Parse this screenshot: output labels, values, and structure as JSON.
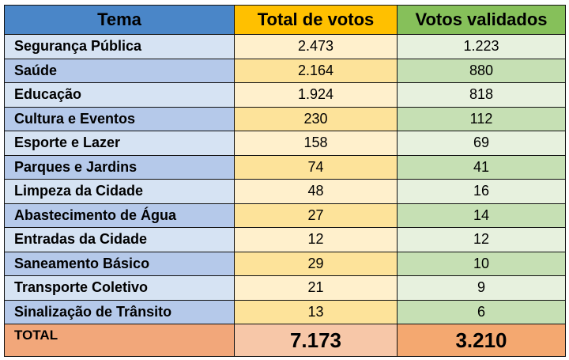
{
  "table": {
    "headers": {
      "tema": "Tema",
      "total": "Total de votos",
      "valid": "Votos validados"
    },
    "rows": [
      {
        "tema": "Segurança Pública",
        "total": "2.473",
        "valid": "1.223"
      },
      {
        "tema": "Saúde",
        "total": "2.164",
        "valid": "880"
      },
      {
        "tema": "Educação",
        "total": "1.924",
        "valid": "818"
      },
      {
        "tema": "Cultura e Eventos",
        "total": "230",
        "valid": "112"
      },
      {
        "tema": "Esporte e Lazer",
        "total": "158",
        "valid": "69"
      },
      {
        "tema": "Parques e Jardins",
        "total": "74",
        "valid": "41"
      },
      {
        "tema": "Limpeza da Cidade",
        "total": "48",
        "valid": "16"
      },
      {
        "tema": "Abastecimento de Água",
        "total": "27",
        "valid": "14"
      },
      {
        "tema": "Entradas da Cidade",
        "total": "12",
        "valid": "12"
      },
      {
        "tema": "Saneamento Básico",
        "total": "29",
        "valid": "10"
      },
      {
        "tema": "Transporte Coletivo",
        "total": "21",
        "valid": "9"
      },
      {
        "tema": "Sinalização de Trânsito",
        "total": "13",
        "valid": "6"
      }
    ],
    "footer": {
      "label": "TOTAL",
      "total": "7.173",
      "valid": "3.210"
    }
  },
  "colors": {
    "header_tema": "#4a86c8",
    "header_total": "#ffc000",
    "header_valid": "#86c05a",
    "footer": "#f4b07f"
  }
}
